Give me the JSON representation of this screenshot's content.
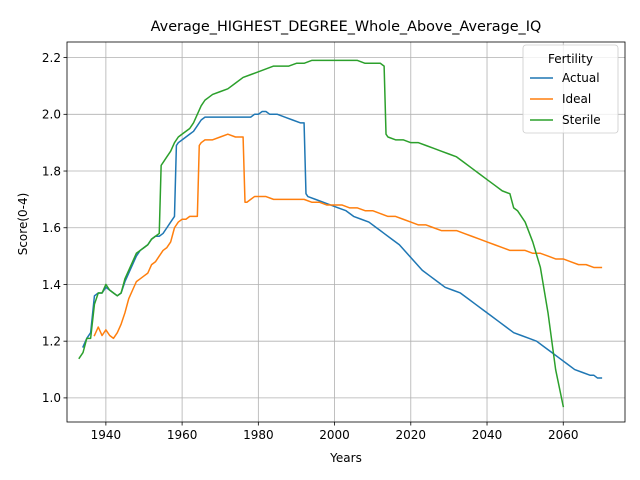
{
  "chart_data": {
    "type": "line",
    "title": "Average_HIGHEST_DEGREE_Whole_Above_Average_IQ",
    "xlabel": "Years",
    "ylabel": "Score(0-4)",
    "xlim": [
      1929.8,
      2076.2
    ],
    "ylim": [
      0.915,
      2.255
    ],
    "xticks": [
      1940,
      1960,
      1980,
      2000,
      2020,
      2040,
      2060
    ],
    "yticks": [
      1.0,
      1.2,
      1.4,
      1.6,
      1.8,
      2.0,
      2.2
    ],
    "grid": true,
    "legend": {
      "title": "Fertility",
      "placement": "top-right"
    },
    "series": [
      {
        "name": "Actual",
        "color": "#1f77b4",
        "points": [
          [
            1934,
            1.18
          ],
          [
            1935,
            1.21
          ],
          [
            1936,
            1.23
          ],
          [
            1937,
            1.36
          ],
          [
            1938,
            1.37
          ],
          [
            1939,
            1.37
          ],
          [
            1940,
            1.39
          ],
          [
            1941,
            1.38
          ],
          [
            1942,
            1.37
          ],
          [
            1943,
            1.36
          ],
          [
            1944,
            1.37
          ],
          [
            1945,
            1.41
          ],
          [
            1946,
            1.44
          ],
          [
            1947,
            1.47
          ],
          [
            1948,
            1.5
          ],
          [
            1949,
            1.52
          ],
          [
            1950,
            1.53
          ],
          [
            1951,
            1.54
          ],
          [
            1952,
            1.56
          ],
          [
            1953,
            1.57
          ],
          [
            1954,
            1.57
          ],
          [
            1955,
            1.58
          ],
          [
            1956,
            1.6
          ],
          [
            1957,
            1.62
          ],
          [
            1958,
            1.64
          ],
          [
            1958.5,
            1.89
          ],
          [
            1959,
            1.9
          ],
          [
            1960,
            1.91
          ],
          [
            1961,
            1.92
          ],
          [
            1962,
            1.93
          ],
          [
            1963,
            1.94
          ],
          [
            1964,
            1.96
          ],
          [
            1965,
            1.98
          ],
          [
            1966,
            1.99
          ],
          [
            1968,
            1.99
          ],
          [
            1970,
            1.99
          ],
          [
            1972,
            1.99
          ],
          [
            1974,
            1.99
          ],
          [
            1976,
            1.99
          ],
          [
            1978,
            1.99
          ],
          [
            1979,
            2.0
          ],
          [
            1980,
            2.0
          ],
          [
            1981,
            2.01
          ],
          [
            1982,
            2.01
          ],
          [
            1983,
            2.0
          ],
          [
            1985,
            2.0
          ],
          [
            1987,
            1.99
          ],
          [
            1989,
            1.98
          ],
          [
            1991,
            1.97
          ],
          [
            1992,
            1.97
          ],
          [
            1992.5,
            1.72
          ],
          [
            1993,
            1.71
          ],
          [
            1995,
            1.7
          ],
          [
            1997,
            1.69
          ],
          [
            1999,
            1.68
          ],
          [
            2001,
            1.67
          ],
          [
            2003,
            1.66
          ],
          [
            2005,
            1.64
          ],
          [
            2007,
            1.63
          ],
          [
            2009,
            1.62
          ],
          [
            2011,
            1.6
          ],
          [
            2013,
            1.58
          ],
          [
            2015,
            1.56
          ],
          [
            2017,
            1.54
          ],
          [
            2019,
            1.51
          ],
          [
            2021,
            1.48
          ],
          [
            2023,
            1.45
          ],
          [
            2025,
            1.43
          ],
          [
            2027,
            1.41
          ],
          [
            2029,
            1.39
          ],
          [
            2031,
            1.38
          ],
          [
            2033,
            1.37
          ],
          [
            2035,
            1.35
          ],
          [
            2037,
            1.33
          ],
          [
            2039,
            1.31
          ],
          [
            2041,
            1.29
          ],
          [
            2043,
            1.27
          ],
          [
            2045,
            1.25
          ],
          [
            2047,
            1.23
          ],
          [
            2049,
            1.22
          ],
          [
            2051,
            1.21
          ],
          [
            2053,
            1.2
          ],
          [
            2055,
            1.18
          ],
          [
            2057,
            1.16
          ],
          [
            2059,
            1.14
          ],
          [
            2061,
            1.12
          ],
          [
            2063,
            1.1
          ],
          [
            2065,
            1.09
          ],
          [
            2067,
            1.08
          ],
          [
            2068,
            1.08
          ],
          [
            2069,
            1.07
          ],
          [
            2070,
            1.07
          ]
        ]
      },
      {
        "name": "Ideal",
        "color": "#ff7f0e",
        "points": [
          [
            1937,
            1.22
          ],
          [
            1938,
            1.25
          ],
          [
            1939,
            1.22
          ],
          [
            1940,
            1.24
          ],
          [
            1941,
            1.22
          ],
          [
            1942,
            1.21
          ],
          [
            1943,
            1.23
          ],
          [
            1944,
            1.26
          ],
          [
            1945,
            1.3
          ],
          [
            1946,
            1.35
          ],
          [
            1947,
            1.38
          ],
          [
            1948,
            1.41
          ],
          [
            1949,
            1.42
          ],
          [
            1950,
            1.43
          ],
          [
            1951,
            1.44
          ],
          [
            1952,
            1.47
          ],
          [
            1953,
            1.48
          ],
          [
            1954,
            1.5
          ],
          [
            1955,
            1.52
          ],
          [
            1956,
            1.53
          ],
          [
            1957,
            1.55
          ],
          [
            1958,
            1.6
          ],
          [
            1959,
            1.62
          ],
          [
            1960,
            1.63
          ],
          [
            1961,
            1.63
          ],
          [
            1962,
            1.64
          ],
          [
            1963,
            1.64
          ],
          [
            1964,
            1.64
          ],
          [
            1964.5,
            1.89
          ],
          [
            1965,
            1.9
          ],
          [
            1966,
            1.91
          ],
          [
            1968,
            1.91
          ],
          [
            1970,
            1.92
          ],
          [
            1972,
            1.93
          ],
          [
            1974,
            1.92
          ],
          [
            1976,
            1.92
          ],
          [
            1976.5,
            1.69
          ],
          [
            1977,
            1.69
          ],
          [
            1978,
            1.7
          ],
          [
            1979,
            1.71
          ],
          [
            1980,
            1.71
          ],
          [
            1982,
            1.71
          ],
          [
            1984,
            1.7
          ],
          [
            1986,
            1.7
          ],
          [
            1988,
            1.7
          ],
          [
            1990,
            1.7
          ],
          [
            1992,
            1.7
          ],
          [
            1994,
            1.69
          ],
          [
            1996,
            1.69
          ],
          [
            1998,
            1.68
          ],
          [
            2000,
            1.68
          ],
          [
            2002,
            1.68
          ],
          [
            2004,
            1.67
          ],
          [
            2006,
            1.67
          ],
          [
            2008,
            1.66
          ],
          [
            2010,
            1.66
          ],
          [
            2012,
            1.65
          ],
          [
            2014,
            1.64
          ],
          [
            2016,
            1.64
          ],
          [
            2018,
            1.63
          ],
          [
            2020,
            1.62
          ],
          [
            2022,
            1.61
          ],
          [
            2024,
            1.61
          ],
          [
            2026,
            1.6
          ],
          [
            2028,
            1.59
          ],
          [
            2030,
            1.59
          ],
          [
            2032,
            1.59
          ],
          [
            2034,
            1.58
          ],
          [
            2036,
            1.57
          ],
          [
            2038,
            1.56
          ],
          [
            2040,
            1.55
          ],
          [
            2042,
            1.54
          ],
          [
            2044,
            1.53
          ],
          [
            2046,
            1.52
          ],
          [
            2048,
            1.52
          ],
          [
            2050,
            1.52
          ],
          [
            2052,
            1.51
          ],
          [
            2054,
            1.51
          ],
          [
            2056,
            1.5
          ],
          [
            2058,
            1.49
          ],
          [
            2060,
            1.49
          ],
          [
            2062,
            1.48
          ],
          [
            2064,
            1.47
          ],
          [
            2066,
            1.47
          ],
          [
            2068,
            1.46
          ],
          [
            2070,
            1.46
          ]
        ]
      },
      {
        "name": "Sterile",
        "color": "#2ca02c",
        "points": [
          [
            1933,
            1.14
          ],
          [
            1934,
            1.16
          ],
          [
            1935,
            1.21
          ],
          [
            1936,
            1.21
          ],
          [
            1937,
            1.33
          ],
          [
            1938,
            1.37
          ],
          [
            1939,
            1.37
          ],
          [
            1940,
            1.4
          ],
          [
            1941,
            1.38
          ],
          [
            1942,
            1.37
          ],
          [
            1943,
            1.36
          ],
          [
            1944,
            1.37
          ],
          [
            1945,
            1.42
          ],
          [
            1946,
            1.45
          ],
          [
            1947,
            1.48
          ],
          [
            1948,
            1.51
          ],
          [
            1949,
            1.52
          ],
          [
            1950,
            1.53
          ],
          [
            1951,
            1.54
          ],
          [
            1952,
            1.56
          ],
          [
            1953,
            1.57
          ],
          [
            1954,
            1.58
          ],
          [
            1954.5,
            1.82
          ],
          [
            1955,
            1.83
          ],
          [
            1956,
            1.85
          ],
          [
            1957,
            1.87
          ],
          [
            1958,
            1.9
          ],
          [
            1959,
            1.92
          ],
          [
            1960,
            1.93
          ],
          [
            1962,
            1.95
          ],
          [
            1963,
            1.97
          ],
          [
            1964,
            2.0
          ],
          [
            1965,
            2.03
          ],
          [
            1966,
            2.05
          ],
          [
            1967,
            2.06
          ],
          [
            1968,
            2.07
          ],
          [
            1970,
            2.08
          ],
          [
            1972,
            2.09
          ],
          [
            1974,
            2.11
          ],
          [
            1976,
            2.13
          ],
          [
            1978,
            2.14
          ],
          [
            1980,
            2.15
          ],
          [
            1982,
            2.16
          ],
          [
            1984,
            2.17
          ],
          [
            1986,
            2.17
          ],
          [
            1988,
            2.17
          ],
          [
            1990,
            2.18
          ],
          [
            1992,
            2.18
          ],
          [
            1994,
            2.19
          ],
          [
            1996,
            2.19
          ],
          [
            1998,
            2.19
          ],
          [
            2000,
            2.19
          ],
          [
            2002,
            2.19
          ],
          [
            2004,
            2.19
          ],
          [
            2006,
            2.19
          ],
          [
            2008,
            2.18
          ],
          [
            2010,
            2.18
          ],
          [
            2012,
            2.18
          ],
          [
            2013,
            2.17
          ],
          [
            2013.5,
            1.93
          ],
          [
            2014,
            1.92
          ],
          [
            2016,
            1.91
          ],
          [
            2018,
            1.91
          ],
          [
            2020,
            1.9
          ],
          [
            2022,
            1.9
          ],
          [
            2024,
            1.89
          ],
          [
            2026,
            1.88
          ],
          [
            2028,
            1.87
          ],
          [
            2030,
            1.86
          ],
          [
            2032,
            1.85
          ],
          [
            2034,
            1.83
          ],
          [
            2036,
            1.81
          ],
          [
            2038,
            1.79
          ],
          [
            2040,
            1.77
          ],
          [
            2042,
            1.75
          ],
          [
            2044,
            1.73
          ],
          [
            2046,
            1.72
          ],
          [
            2047,
            1.67
          ],
          [
            2048,
            1.66
          ],
          [
            2050,
            1.62
          ],
          [
            2052,
            1.55
          ],
          [
            2054,
            1.46
          ],
          [
            2056,
            1.3
          ],
          [
            2058,
            1.1
          ],
          [
            2060,
            0.97
          ]
        ]
      }
    ]
  }
}
